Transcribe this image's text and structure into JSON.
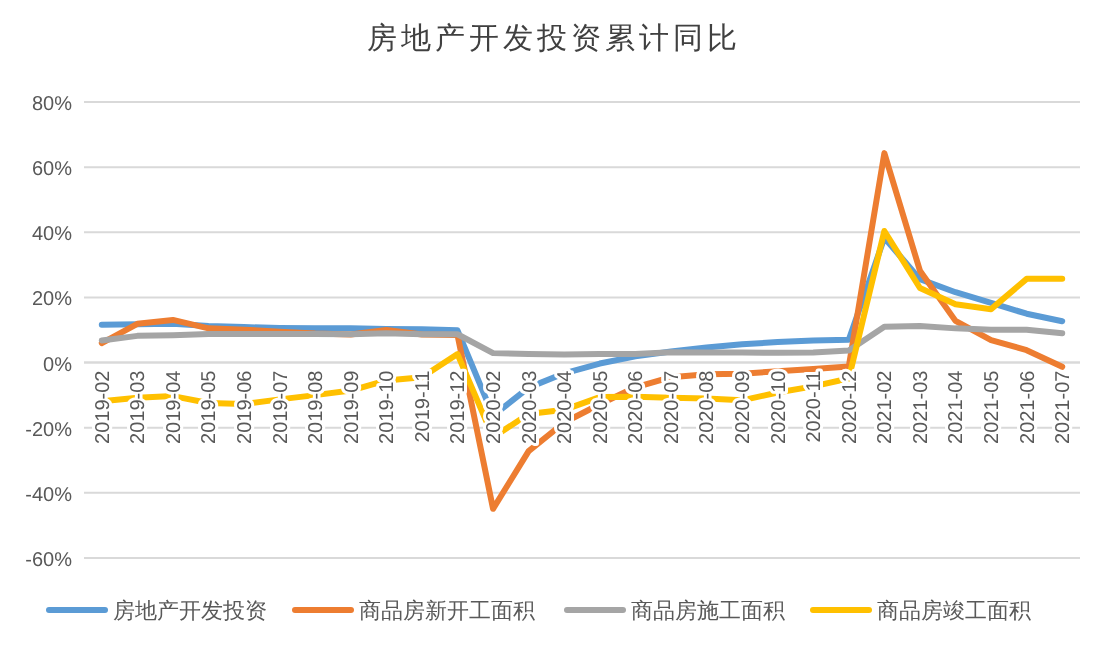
{
  "chart_data": {
    "type": "line",
    "title": "房地产开发投资累计同比",
    "categories": [
      "2019-02",
      "2019-03",
      "2019-04",
      "2019-05",
      "2019-06",
      "2019-07",
      "2019-08",
      "2019-09",
      "2019-10",
      "2019-11",
      "2019-12",
      "2020-02",
      "2020-03",
      "2020-04",
      "2020-05",
      "2020-06",
      "2020-07",
      "2020-08",
      "2020-09",
      "2020-10",
      "2020-11",
      "2020-12",
      "2021-02",
      "2021-03",
      "2021-04",
      "2021-05",
      "2021-06",
      "2021-07"
    ],
    "series": [
      {
        "name": "房地产开发投资",
        "color": "#5b9bd5",
        "values": [
          11.6,
          11.8,
          11.9,
          11.2,
          10.9,
          10.6,
          10.5,
          10.5,
          10.3,
          10.2,
          9.9,
          -16.3,
          -7.7,
          -3.3,
          -0.3,
          1.9,
          3.4,
          4.6,
          5.6,
          6.3,
          6.8,
          7.0,
          38.3,
          25.6,
          21.6,
          18.3,
          15.0,
          12.7
        ]
      },
      {
        "name": "商品房新开工面积",
        "color": "#ed7d31",
        "values": [
          6.0,
          11.9,
          13.1,
          10.5,
          10.1,
          9.5,
          8.9,
          8.6,
          10.0,
          8.6,
          8.5,
          -44.9,
          -27.2,
          -18.4,
          -12.8,
          -7.6,
          -4.5,
          -3.6,
          -3.4,
          -2.7,
          -2.0,
          -1.2,
          64.3,
          28.2,
          12.8,
          6.9,
          3.8,
          -1.3
        ]
      },
      {
        "name": "商品房施工面积",
        "color": "#a5a5a5",
        "values": [
          6.8,
          8.2,
          8.4,
          8.8,
          8.8,
          8.8,
          8.8,
          8.7,
          9.0,
          8.7,
          8.7,
          2.9,
          2.6,
          2.5,
          2.6,
          2.6,
          3.2,
          3.1,
          3.1,
          3.0,
          3.1,
          3.7,
          11.0,
          11.2,
          10.5,
          10.1,
          10.1,
          9.0
        ]
      },
      {
        "name": "商品房竣工面积",
        "color": "#ffc000",
        "values": [
          -11.9,
          -10.8,
          -10.3,
          -12.4,
          -12.7,
          -11.3,
          -10.0,
          -8.6,
          -5.5,
          -4.5,
          2.6,
          -22.9,
          -15.8,
          -14.5,
          -10.6,
          -10.5,
          -10.8,
          -11.0,
          -11.6,
          -9.2,
          -7.3,
          -4.9,
          40.4,
          22.9,
          17.9,
          16.4,
          25.7,
          25.7
        ]
      }
    ],
    "ylim": [
      -60,
      80
    ],
    "yticks": [
      {
        "value": -60,
        "label": "-60%"
      },
      {
        "value": -40,
        "label": "-40%"
      },
      {
        "value": -20,
        "label": "-20%"
      },
      {
        "value": 0,
        "label": "0%"
      },
      {
        "value": 20,
        "label": "20%"
      },
      {
        "value": 40,
        "label": "40%"
      },
      {
        "value": 60,
        "label": "60%"
      },
      {
        "value": 80,
        "label": "80%"
      }
    ],
    "grid": "y",
    "legend": "bottom",
    "marker": "none",
    "line_style": "solid"
  }
}
